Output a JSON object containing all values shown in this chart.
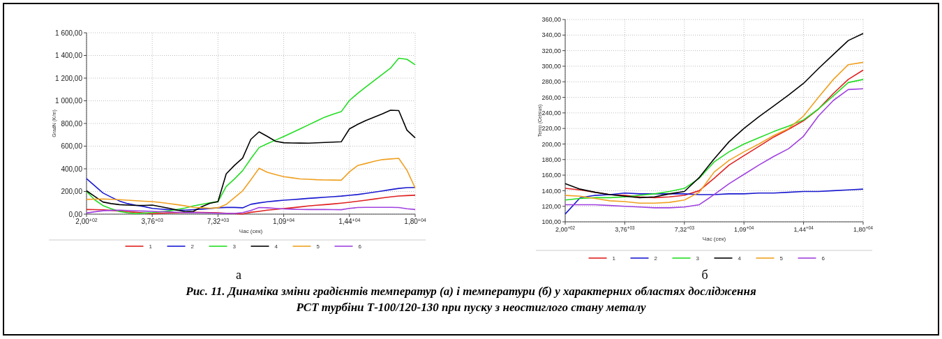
{
  "chart_data": [
    {
      "type": "line",
      "xlabel": "Час (сек)",
      "ylabel": "GradN (K/m)",
      "ylim": [
        0,
        1600
      ],
      "categories": [
        "2,00$^{+02}$",
        null,
        null,
        null,
        null,
        null,
        null,
        null,
        "3,76$^{+03}$",
        null,
        null,
        null,
        null,
        null,
        null,
        null,
        "7,32$^{+03}$",
        null,
        null,
        null,
        null,
        null,
        null,
        null,
        "1,09$^{+04}$",
        null,
        null,
        null,
        null,
        null,
        null,
        null,
        "1,44$^{+04}$",
        null,
        null,
        null,
        null,
        null,
        null,
        null,
        "1,80$^{+04}$"
      ],
      "yticks": [
        {
          "value": 0,
          "label": "0,00"
        },
        {
          "value": 200,
          "label": "200,00"
        },
        {
          "value": 400,
          "label": "400,00"
        },
        {
          "value": 600,
          "label": "600,00"
        },
        {
          "value": 800,
          "label": "800,00"
        },
        {
          "value": 1000,
          "label": "1 000,00"
        },
        {
          "value": 1200,
          "label": "1 200,00"
        },
        {
          "value": 1400,
          "label": "1 400,00"
        },
        {
          "value": 1600,
          "label": "1 600,00"
        }
      ],
      "grid": true,
      "legend": "bottom",
      "annotations": [
        "а",
        "Рис. 11. Динаміка зміни градієнтів температур (а) і температури (б) у характерних областях дослідження\nРСТ турбіни Т-100/120-130 при пуску з неостиглого стану металу"
      ],
      "series": [
        {
          "name": "1",
          "color": "#e02020",
          "values": [
            41,
            40,
            38,
            33,
            27,
            22,
            16,
            11,
            4,
            8,
            11,
            13,
            14,
            16,
            15,
            14,
            12,
            8,
            5,
            2,
            16,
            25,
            35,
            42,
            49,
            56,
            64,
            72,
            78,
            84,
            90,
            97,
            105,
            114,
            123,
            133,
            143,
            152,
            160,
            164,
            167
          ]
        },
        {
          "name": "2",
          "color": "#1a1ad0",
          "values": [
            313,
            250,
            187,
            150,
            116,
            93,
            78,
            67,
            51,
            45,
            39,
            37,
            35,
            40,
            44,
            49,
            56,
            59,
            59,
            56,
            87,
            99,
            109,
            116,
            123,
            128,
            133,
            139,
            144,
            149,
            154,
            159,
            166,
            173,
            183,
            194,
            205,
            216,
            227,
            234,
            235
          ]
        },
        {
          "name": "3",
          "color": "#22dd22",
          "values": [
            200,
            126,
            76,
            47,
            24,
            12,
            5,
            9,
            14,
            21,
            28,
            41,
            54,
            72,
            86,
            100,
            110,
            244,
            310,
            384,
            489,
            587,
            622,
            653,
            685,
            718,
            752,
            787,
            821,
            856,
            881,
            904,
            1003,
            1065,
            1122,
            1178,
            1233,
            1288,
            1375,
            1366,
            1318
          ]
        },
        {
          "name": "4",
          "color": "#000000",
          "values": [
            206,
            156,
            107,
            93,
            84,
            80,
            77,
            77,
            80,
            66,
            52,
            36,
            22,
            25,
            65,
            95,
            111,
            355,
            430,
            495,
            660,
            726,
            686,
            643,
            630,
            628,
            627,
            626,
            629,
            632,
            635,
            638,
            752,
            792,
            826,
            855,
            884,
            917,
            914,
            741,
            673
          ]
        },
        {
          "name": "5",
          "color": "#f0a020",
          "values": [
            130,
            132,
            134,
            131,
            128,
            123,
            118,
            114,
            111,
            103,
            94,
            84,
            73,
            60,
            56,
            52,
            56,
            86,
            146,
            206,
            303,
            405,
            369,
            349,
            331,
            321,
            311,
            308,
            304,
            302,
            301,
            299,
            373,
            429,
            447,
            466,
            481,
            487,
            492,
            387,
            231
          ]
        },
        {
          "name": "6",
          "color": "#a040e0",
          "values": [
            10,
            21,
            30,
            33,
            35,
            32,
            29,
            27,
            25,
            22,
            20,
            17,
            14,
            13,
            12,
            11,
            8,
            7,
            6,
            14,
            32,
            58,
            56,
            51,
            46,
            44,
            42,
            41,
            41,
            41,
            40,
            39,
            51,
            58,
            60,
            60,
            60,
            60,
            58,
            48,
            41
          ]
        }
      ]
    },
    {
      "type": "line",
      "xlabel": "Час (сек)",
      "ylabel": "Temp (Celsius)",
      "ylim": [
        100,
        360
      ],
      "categories": [
        "2,00$^{+02}$",
        null,
        null,
        null,
        "3,76$^{+03}$",
        null,
        null,
        null,
        "7,32$^{+03}$",
        null,
        null,
        null,
        "1,09$^{+04}$",
        null,
        null,
        null,
        "1,44$^{+04}$",
        null,
        null,
        null,
        "1,80$^{+04}$"
      ],
      "yticks": [
        {
          "value": 100,
          "label": "100,00"
        },
        {
          "value": 120,
          "label": "120,00"
        },
        {
          "value": 140,
          "label": "140,00"
        },
        {
          "value": 160,
          "label": "160,00"
        },
        {
          "value": 180,
          "label": "180,00"
        },
        {
          "value": 200,
          "label": "200,00"
        },
        {
          "value": 220,
          "label": "220,00"
        },
        {
          "value": 240,
          "label": "240,00"
        },
        {
          "value": 260,
          "label": "260,00"
        },
        {
          "value": 280,
          "label": "280,00"
        },
        {
          "value": 300,
          "label": "300,00"
        },
        {
          "value": 320,
          "label": "320,00"
        },
        {
          "value": 340,
          "label": "340,00"
        },
        {
          "value": 360,
          "label": "360,00"
        }
      ],
      "grid": true,
      "legend": "bottom",
      "annotations": [
        "б"
      ],
      "series": [
        {
          "name": "1",
          "color": "#e02020",
          "values": [
            143,
            141,
            138,
            135,
            134,
            132,
            131,
            132,
            134,
            140,
            156,
            173,
            185,
            197,
            209,
            219,
            230,
            245,
            265,
            283,
            295
          ]
        },
        {
          "name": "2",
          "color": "#1a1ad0",
          "values": [
            110,
            131,
            134,
            135,
            137,
            136,
            136,
            136,
            136,
            135,
            135,
            136,
            136,
            137,
            137,
            138,
            139,
            139,
            140,
            141,
            142
          ]
        },
        {
          "name": "3",
          "color": "#22dd22",
          "values": [
            128,
            130,
            131,
            131,
            132,
            134,
            136,
            139,
            143,
            156,
            177,
            190,
            200,
            208,
            216,
            223,
            231,
            245,
            262,
            279,
            283
          ]
        },
        {
          "name": "4",
          "color": "#000000",
          "values": [
            149,
            142,
            138,
            135,
            133,
            131,
            132,
            136,
            139,
            157,
            181,
            203,
            220,
            235,
            249,
            263,
            278,
            297,
            315,
            333,
            342
          ]
        },
        {
          "name": "5",
          "color": "#f0a020",
          "values": [
            134,
            133,
            130,
            127,
            126,
            124,
            124,
            125,
            128,
            138,
            164,
            179,
            190,
            200,
            211,
            220,
            236,
            260,
            283,
            302,
            305
          ]
        },
        {
          "name": "6",
          "color": "#a040e0",
          "values": [
            122,
            122,
            122,
            121,
            120,
            119,
            118,
            118,
            119,
            122,
            135,
            149,
            161,
            173,
            184,
            194,
            210,
            236,
            256,
            270,
            271
          ]
        }
      ]
    }
  ]
}
